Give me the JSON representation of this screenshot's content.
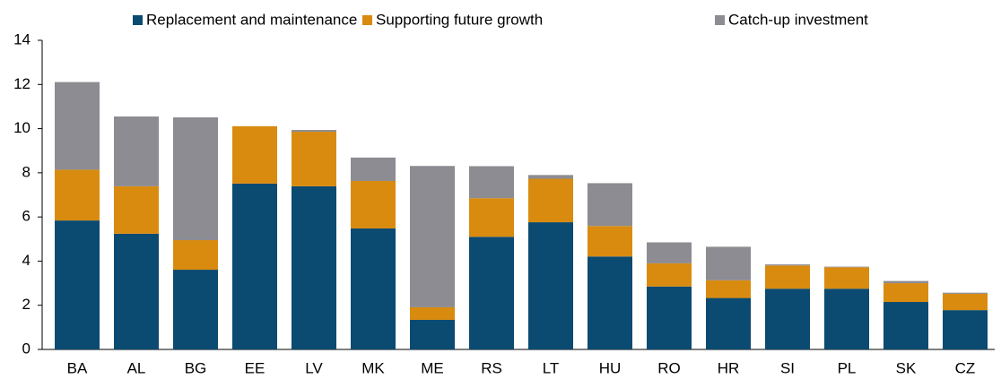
{
  "chart_data": {
    "type": "stacked_bar",
    "categories": [
      "BA",
      "AL",
      "BG",
      "EE",
      "LV",
      "MK",
      "ME",
      "RS",
      "LT",
      "HU",
      "RO",
      "HR",
      "SI",
      "PL",
      "SK",
      "CZ"
    ],
    "series": [
      {
        "name": "Replacement and maintenance",
        "color": "#0b4a71",
        "values": [
          5.84,
          5.24,
          3.61,
          7.51,
          7.39,
          5.48,
          1.34,
          5.1,
          5.76,
          4.21,
          2.85,
          2.33,
          2.75,
          2.75,
          2.15,
          1.78
        ]
      },
      {
        "name": "Supporting future growth",
        "color": "#d98b10",
        "values": [
          2.3,
          2.15,
          1.34,
          2.6,
          2.47,
          2.15,
          0.57,
          1.75,
          1.97,
          1.38,
          1.05,
          0.8,
          1.05,
          0.97,
          0.85,
          0.74
        ]
      },
      {
        "name": "Catch-up investment",
        "color": "#8c8c92",
        "values": [
          3.97,
          3.16,
          5.56,
          0,
          0.08,
          1.06,
          6.4,
          1.45,
          0.17,
          1.94,
          0.95,
          1.52,
          0.05,
          0.03,
          0.1,
          0.05
        ]
      }
    ],
    "ylim": [
      0,
      14
    ],
    "yticks": [
      0,
      2,
      4,
      6,
      8,
      10,
      12,
      14
    ],
    "legend": "top"
  }
}
